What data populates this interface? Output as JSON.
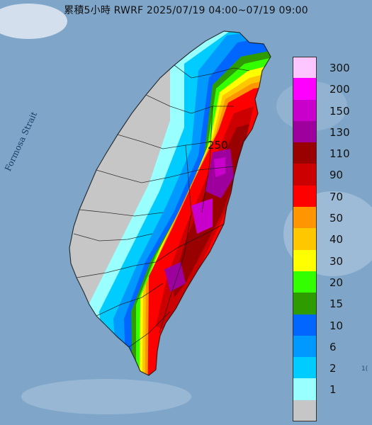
{
  "title": "累積5小時 RWRF 2025/07/19 04:00~07/19 09:00",
  "map": {
    "strait_label": "Formosa Strait",
    "peak_label": "250",
    "edge_text": "1("
  },
  "legend": {
    "unit_levels": [
      {
        "label": "300",
        "color": "#fec6fe"
      },
      {
        "label": "200",
        "color": "#fe00fe"
      },
      {
        "label": "150",
        "color": "#c900cb"
      },
      {
        "label": "130",
        "color": "#9e009e"
      },
      {
        "label": "110",
        "color": "#990000"
      },
      {
        "label": "90",
        "color": "#cc0000"
      },
      {
        "label": "70",
        "color": "#fe0000"
      },
      {
        "label": "50",
        "color": "#ff9500"
      },
      {
        "label": "40",
        "color": "#ffc700"
      },
      {
        "label": "30",
        "color": "#ffff00"
      },
      {
        "label": "20",
        "color": "#33ff00"
      },
      {
        "label": "15",
        "color": "#2e9b00"
      },
      {
        "label": "10",
        "color": "#0066ff"
      },
      {
        "label": "6",
        "color": "#0099ff"
      },
      {
        "label": "2",
        "color": "#00ccff"
      },
      {
        "label": "1",
        "color": "#99ffff"
      },
      {
        "label": "",
        "color": "#c6c6c6"
      }
    ]
  }
}
